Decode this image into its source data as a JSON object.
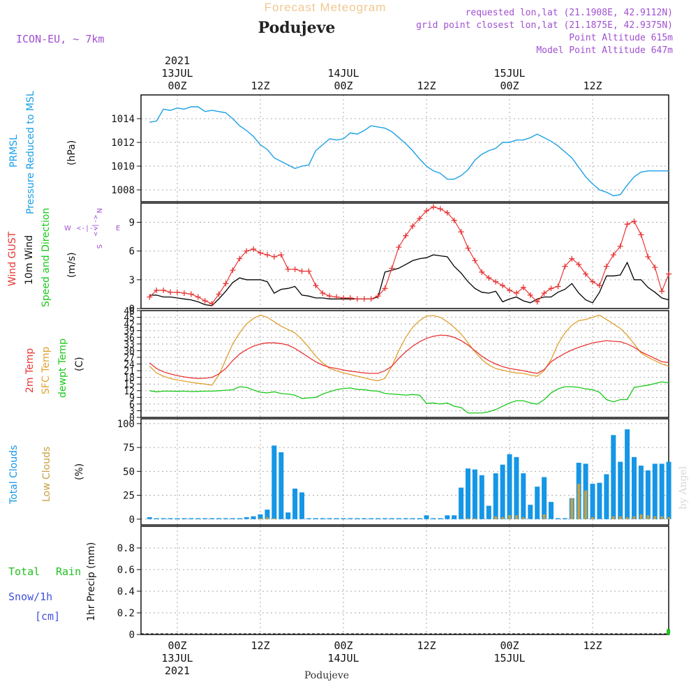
{
  "header": {
    "product": "Forecast Meteogram",
    "location": "Podujeve",
    "model": "ICON-EU, ~ 7km",
    "requested": "requested lon,lat (21.1908E, 42.9112N)",
    "grid": "grid point closest lon,lat (21.1875E, 42.9375N)",
    "point_alt": "Point Altitude 615m",
    "model_alt": "Model Point Altitude 647m",
    "credit": "by Angel",
    "footer_location": "Podujeve"
  },
  "time_axis": {
    "year": "2021",
    "ticks_top": [
      "00Z",
      "12Z",
      "00Z",
      "12Z",
      "00Z",
      "12Z"
    ],
    "dates_top": [
      "13JUL",
      "14JUL",
      "15JUL"
    ],
    "ticks_bottom": [
      "00Z",
      "12Z",
      "00Z",
      "12Z",
      "00Z",
      "12Z"
    ],
    "dates_bottom": [
      "13JUL",
      "14JUL",
      "15JUL"
    ]
  },
  "labels": {
    "p1": {
      "a": "PRMSL",
      "b": "Pressure Reduced to MSL",
      "unit": "(hPa)"
    },
    "p2": {
      "a": "Wind GUST",
      "b": "10m Wind",
      "c": "Speed and Direction",
      "unit": "(m/s)"
    },
    "p3": {
      "a": "2m Temp",
      "b": "SFC Temp",
      "c": "dewpt Temp",
      "unit": "(C)"
    },
    "p4": {
      "a": "Total Clouds",
      "b": "Low Clouds",
      "unit": "(%)"
    },
    "p5": {
      "a": "Total",
      "b": "Rain",
      "c": "Snow/1h",
      "d": "[cm]",
      "unit": "1hr Precip (mm)"
    },
    "compass": {
      "n": "N",
      "s": "S",
      "w": "W",
      "e": "E",
      "arrow": "<-|->"
    }
  },
  "colors": {
    "pressure": "#1ba0e6",
    "gust": "#e83535",
    "wind": "#000000",
    "temp2m": "#e83535",
    "sfc": "#e0a030",
    "dewpt": "#19c819",
    "total_cloud": "#1596e6",
    "low_cloud": "#c8a040",
    "rain": "#20c020",
    "snow": "#4050e0",
    "purple": "#a050d0"
  },
  "chart_data": [
    {
      "type": "line",
      "name": "PRMSL",
      "title": "",
      "ylabel": "(hPa)",
      "ylim": [
        1007,
        1016
      ],
      "yticks": [
        1008,
        1010,
        1012,
        1014
      ],
      "x_hours": [
        -4,
        -3,
        -2,
        -1,
        0,
        1,
        2,
        3,
        4,
        5,
        6,
        7,
        8,
        9,
        10,
        11,
        12,
        13,
        14,
        15,
        16,
        17,
        18,
        19,
        20,
        21,
        22,
        23,
        24,
        25,
        26,
        27,
        28,
        29,
        30,
        31,
        32,
        33,
        34,
        35,
        36,
        37,
        38,
        39,
        40,
        41,
        42,
        43,
        44,
        45,
        46,
        47,
        48,
        49,
        50,
        51,
        52,
        53,
        54,
        55,
        56,
        57,
        58,
        59,
        60,
        61,
        62,
        63,
        64,
        65,
        66,
        67,
        68,
        69,
        70,
        71
      ],
      "values": [
        1013.7,
        1013.8,
        1014.8,
        1014.7,
        1014.9,
        1014.8,
        1015.0,
        1015.0,
        1014.6,
        1014.7,
        1014.6,
        1014.5,
        1014.0,
        1013.4,
        1013.0,
        1012.5,
        1011.8,
        1011.4,
        1010.7,
        1010.4,
        1010.1,
        1009.8,
        1010.0,
        1010.1,
        1011.3,
        1011.8,
        1012.3,
        1012.2,
        1012.3,
        1012.8,
        1012.7,
        1013.0,
        1013.4,
        1013.3,
        1013.2,
        1012.9,
        1012.4,
        1011.9,
        1011.3,
        1010.6,
        1010.0,
        1009.6,
        1009.4,
        1008.9,
        1008.9,
        1009.2,
        1009.7,
        1010.5,
        1011.0,
        1011.3,
        1011.5,
        1012.0,
        1012.0,
        1012.2,
        1012.2,
        1012.4,
        1012.7,
        1012.4,
        1012.1,
        1011.7,
        1011.2,
        1010.7,
        1009.9,
        1009.1,
        1008.5,
        1008.0,
        1007.8,
        1007.5,
        1007.6,
        1008.4,
        1009.1,
        1009.5,
        1009.6,
        1009.6,
        1009.6,
        1009.6
      ]
    },
    {
      "type": "line",
      "name": "Wind",
      "title": "",
      "ylabel": "(m/s)",
      "ylim": [
        0,
        11
      ],
      "yticks": [
        0,
        3,
        6,
        9
      ],
      "x_hours": [
        -4,
        -3,
        -2,
        -1,
        0,
        1,
        2,
        3,
        4,
        5,
        6,
        7,
        8,
        9,
        10,
        11,
        12,
        13,
        14,
        15,
        16,
        17,
        18,
        19,
        20,
        21,
        22,
        23,
        24,
        25,
        26,
        27,
        28,
        29,
        30,
        31,
        32,
        33,
        34,
        35,
        36,
        37,
        38,
        39,
        40,
        41,
        42,
        43,
        44,
        45,
        46,
        47,
        48,
        49,
        50,
        51,
        52,
        53,
        54,
        55,
        56,
        57,
        58,
        59,
        60,
        61,
        62,
        63,
        64,
        65,
        66,
        67,
        68,
        69,
        70,
        71
      ],
      "series": [
        {
          "name": "Wind GUST",
          "values": [
            1.2,
            1.9,
            1.9,
            1.7,
            1.7,
            1.6,
            1.5,
            1.2,
            0.8,
            0.5,
            1.5,
            2.6,
            4.0,
            5.2,
            6.0,
            6.2,
            5.8,
            5.6,
            5.4,
            5.6,
            4.1,
            4.1,
            3.9,
            3.9,
            2.4,
            1.6,
            1.3,
            1.2,
            1.1,
            1.1,
            1.0,
            1.0,
            1.0,
            1.3,
            2.1,
            4.2,
            6.4,
            7.6,
            8.6,
            9.4,
            10.2,
            10.6,
            10.4,
            10.0,
            9.2,
            8.0,
            6.3,
            5.0,
            3.8,
            3.2,
            2.8,
            2.4,
            1.9,
            1.6,
            2.2,
            1.4,
            0.7,
            1.6,
            2.1,
            2.3,
            4.4,
            5.2,
            4.6,
            3.6,
            2.8,
            2.4,
            4.4,
            5.6,
            6.5,
            8.8,
            9.1,
            7.7,
            5.4,
            4.3,
            1.8,
            3.6
          ]
        },
        {
          "name": "10m Wind",
          "values": [
            1.4,
            1.4,
            1.2,
            1.2,
            1.1,
            1.0,
            0.9,
            0.7,
            0.4,
            0.3,
            1.0,
            1.8,
            2.7,
            3.2,
            3.0,
            3.0,
            3.0,
            2.8,
            1.6,
            2.0,
            2.1,
            2.3,
            1.4,
            1.3,
            1.1,
            1.1,
            1.0,
            1.0,
            1.0,
            1.0,
            1.0,
            1.0,
            1.0,
            1.2,
            3.8,
            4.0,
            4.2,
            4.6,
            5.0,
            5.2,
            5.3,
            5.6,
            5.5,
            5.4,
            4.4,
            3.7,
            2.8,
            2.1,
            1.7,
            1.6,
            1.8,
            0.7,
            1.0,
            1.2,
            0.8,
            0.6,
            1.0,
            1.2,
            1.2,
            1.7,
            2.0,
            2.6,
            1.6,
            0.9,
            0.6,
            1.7,
            3.4,
            3.4,
            3.5,
            4.8,
            3.0,
            3.0,
            2.2,
            1.7,
            1.1,
            0.9
          ]
        }
      ]
    },
    {
      "type": "line",
      "name": "Temperature",
      "title": "",
      "ylabel": "(C)",
      "ylim": [
        0,
        48
      ],
      "yticks": [
        0,
        3,
        6,
        9,
        12,
        15,
        18,
        21,
        24,
        27,
        30,
        33,
        36,
        39,
        42,
        45,
        48
      ],
      "x_hours": [
        -4,
        -3,
        -2,
        -1,
        0,
        1,
        2,
        3,
        4,
        5,
        6,
        7,
        8,
        9,
        10,
        11,
        12,
        13,
        14,
        15,
        16,
        17,
        18,
        19,
        20,
        21,
        22,
        23,
        24,
        25,
        26,
        27,
        28,
        29,
        30,
        31,
        32,
        33,
        34,
        35,
        36,
        37,
        38,
        39,
        40,
        41,
        42,
        43,
        44,
        45,
        46,
        47,
        48,
        49,
        50,
        51,
        52,
        53,
        54,
        55,
        56,
        57,
        58,
        59,
        60,
        61,
        62,
        63,
        64,
        65,
        66,
        67,
        68,
        69,
        70,
        71
      ],
      "series": [
        {
          "name": "2m Temp",
          "values": [
            24.5,
            22.0,
            20.5,
            19.5,
            18.8,
            18.2,
            17.8,
            17.5,
            17.6,
            18.0,
            19.5,
            22.0,
            25.5,
            28.5,
            30.5,
            32.0,
            33.0,
            33.5,
            33.5,
            33.2,
            32.5,
            31.0,
            29.0,
            27.0,
            25.0,
            23.5,
            22.5,
            22.0,
            21.3,
            20.8,
            20.4,
            20.0,
            19.8,
            19.8,
            21.0,
            23.0,
            26.5,
            29.5,
            32.0,
            34.0,
            35.5,
            36.5,
            37.0,
            36.8,
            36.0,
            34.5,
            32.5,
            30.0,
            27.5,
            25.5,
            24.0,
            22.8,
            22.0,
            21.5,
            21.0,
            20.3,
            19.8,
            21.5,
            25.0,
            27.0,
            28.8,
            30.3,
            31.5,
            32.5,
            33.5,
            34.0,
            34.5,
            34.2,
            34.0,
            33.0,
            31.5,
            29.5,
            28.0,
            26.5,
            25.0,
            24.7
          ]
        },
        {
          "name": "SFC Temp",
          "values": [
            23.0,
            20.0,
            18.5,
            17.5,
            16.8,
            16.3,
            15.8,
            15.3,
            15.0,
            14.5,
            19.0,
            26.0,
            33.0,
            38.0,
            42.0,
            44.5,
            46.0,
            45.0,
            43.0,
            41.0,
            39.5,
            38.0,
            35.0,
            31.5,
            27.5,
            24.5,
            22.0,
            21.0,
            20.0,
            19.3,
            18.5,
            17.8,
            17.0,
            16.5,
            17.5,
            23.0,
            30.0,
            36.0,
            40.5,
            43.5,
            45.5,
            45.8,
            45.0,
            43.0,
            40.5,
            37.5,
            33.5,
            29.5,
            26.0,
            23.5,
            22.0,
            21.2,
            20.5,
            20.0,
            19.8,
            19.0,
            18.5,
            21.0,
            26.0,
            33.0,
            38.0,
            41.5,
            43.5,
            44.0,
            45.0,
            46.0,
            44.0,
            42.0,
            40.0,
            37.0,
            33.0,
            29.0,
            27.0,
            25.5,
            24.0,
            23.0
          ]
        },
        {
          "name": "dewpt Temp",
          "values": [
            12.0,
            11.5,
            11.8,
            11.8,
            11.7,
            11.8,
            11.6,
            11.7,
            11.8,
            11.8,
            12.0,
            12.2,
            12.4,
            13.8,
            13.5,
            12.3,
            11.3,
            11.0,
            11.5,
            10.7,
            10.5,
            10.0,
            8.5,
            8.8,
            9.0,
            10.5,
            11.5,
            12.5,
            13.0,
            13.2,
            12.6,
            12.5,
            12.0,
            11.8,
            10.8,
            10.5,
            10.3,
            10.0,
            10.3,
            10.0,
            6.3,
            6.5,
            6.0,
            6.5,
            5.0,
            4.5,
            2.0,
            2.0,
            2.0,
            2.5,
            3.5,
            5.0,
            6.5,
            7.5,
            7.5,
            6.5,
            6.0,
            8.0,
            11.0,
            12.8,
            13.8,
            13.8,
            13.5,
            12.8,
            12.5,
            11.3,
            8.0,
            7.0,
            8.0,
            8.0,
            13.5,
            14.0,
            14.5,
            15.2,
            16.0,
            15.5
          ]
        }
      ]
    },
    {
      "type": "bar",
      "name": "Clouds",
      "title": "",
      "ylabel": "(%)",
      "ylim": [
        -6,
        105
      ],
      "yticks": [
        0,
        25,
        50,
        75,
        100
      ],
      "x_hours": [
        -4,
        -3,
        -2,
        -1,
        0,
        1,
        2,
        3,
        4,
        5,
        6,
        7,
        8,
        9,
        10,
        11,
        12,
        13,
        14,
        15,
        16,
        17,
        18,
        19,
        20,
        21,
        22,
        23,
        24,
        25,
        26,
        27,
        28,
        29,
        30,
        31,
        32,
        33,
        34,
        35,
        36,
        37,
        38,
        39,
        40,
        41,
        42,
        43,
        44,
        45,
        46,
        47,
        48,
        49,
        50,
        51,
        52,
        53,
        54,
        55,
        56,
        57,
        58,
        59,
        60,
        61,
        62,
        63,
        64,
        65,
        66,
        67,
        68,
        69,
        70,
        71
      ],
      "series": [
        {
          "name": "Total Clouds",
          "values": [
            2,
            1,
            1,
            1,
            1,
            1,
            1,
            1,
            1,
            1,
            1,
            1,
            1,
            1,
            2,
            3,
            5,
            10,
            77,
            70,
            7,
            32,
            28,
            1,
            1,
            1,
            1,
            1,
            1,
            1,
            1,
            1,
            1,
            1,
            1,
            1,
            1,
            1,
            1,
            1,
            4,
            1,
            1,
            4,
            4,
            33,
            53,
            52,
            46,
            14,
            48,
            57,
            68,
            65,
            48,
            15,
            34,
            44,
            18,
            1,
            1,
            22,
            59,
            58,
            37,
            38,
            47,
            88,
            60,
            94,
            65,
            56,
            51,
            58,
            58,
            60
          ]
        },
        {
          "name": "Low Clouds",
          "values": [
            0,
            0,
            0,
            0,
            0,
            0,
            0,
            0,
            0,
            0,
            0,
            0,
            0,
            0,
            0,
            0,
            1,
            2,
            1,
            0,
            0,
            0,
            0,
            0,
            0,
            0,
            0,
            0,
            0,
            0,
            0,
            0,
            0,
            0,
            0,
            0,
            0,
            0,
            0,
            0,
            0,
            0,
            0,
            0,
            0,
            0,
            1,
            1,
            0,
            0,
            3,
            2,
            4,
            4,
            2,
            0,
            0,
            5,
            0,
            0,
            0,
            22,
            37,
            30,
            2,
            0,
            0,
            3,
            3,
            2,
            3,
            5,
            4,
            3,
            3,
            2
          ]
        }
      ]
    },
    {
      "type": "bar",
      "name": "Precipitation",
      "title": "",
      "ylabel": "1hr Precip (mm)",
      "ylim": [
        0,
        1.0
      ],
      "yticks": [
        0,
        0.2,
        0.4,
        0.6,
        0.8
      ],
      "ytick_labels": [
        "0",
        "0.2",
        "0.4",
        "0.6",
        "0.8"
      ],
      "x_hours": [
        71
      ],
      "series": [
        {
          "name": "Total Rain",
          "values": [
            0.05
          ]
        },
        {
          "name": "Snow/1h",
          "values": [
            0
          ]
        }
      ]
    }
  ]
}
